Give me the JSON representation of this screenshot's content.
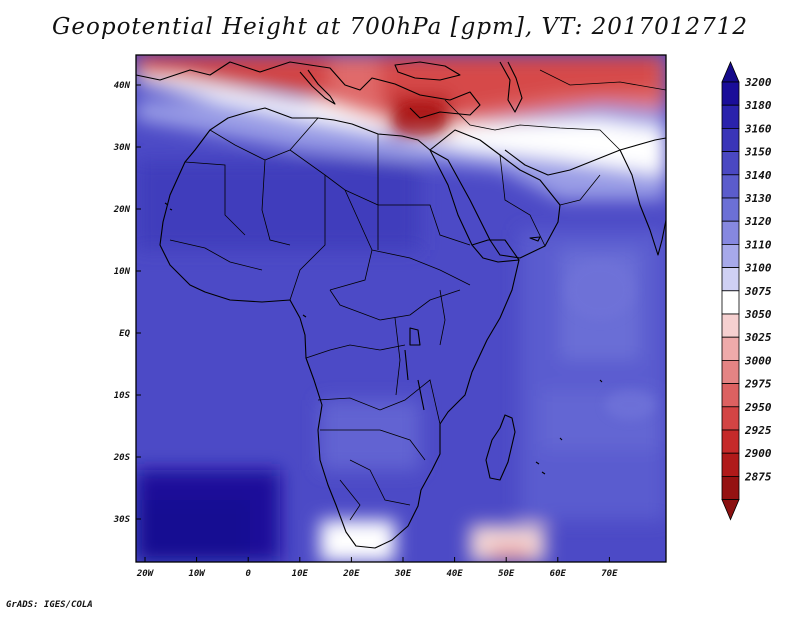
{
  "title": "Geopotential Height at 700hPa [gpm], VT: 2017012712",
  "footer": "GrADS: IGES/COLA",
  "map": {
    "lon_labels": [
      "20W",
      "10W",
      "0",
      "10E",
      "20E",
      "30E",
      "40E",
      "50E",
      "60E",
      "70E"
    ],
    "lat_labels": [
      "40N",
      "30N",
      "20N",
      "10N",
      "EQ",
      "10S",
      "20S",
      "30S"
    ]
  },
  "colorbar": {
    "labels": [
      "3200",
      "3180",
      "3160",
      "3150",
      "3140",
      "3130",
      "3120",
      "3110",
      "3100",
      "3075",
      "3050",
      "3025",
      "3000",
      "2975",
      "2950",
      "2925",
      "2900",
      "2875"
    ],
    "colors": [
      "#1a0d99",
      "#2a22ac",
      "#3a35b8",
      "#4a48c2",
      "#5b5ccc",
      "#6c70d6",
      "#8688e0",
      "#a7a9ea",
      "#cfd0f4",
      "#ffffff",
      "#f6d0d0",
      "#eeaaaa",
      "#e48484",
      "#dc6161",
      "#d34444",
      "#c52a2a",
      "#b01a1a",
      "#951212"
    ],
    "top_arrow_color": "#150a8a",
    "bottom_arrow_color": "#8a1010"
  }
}
